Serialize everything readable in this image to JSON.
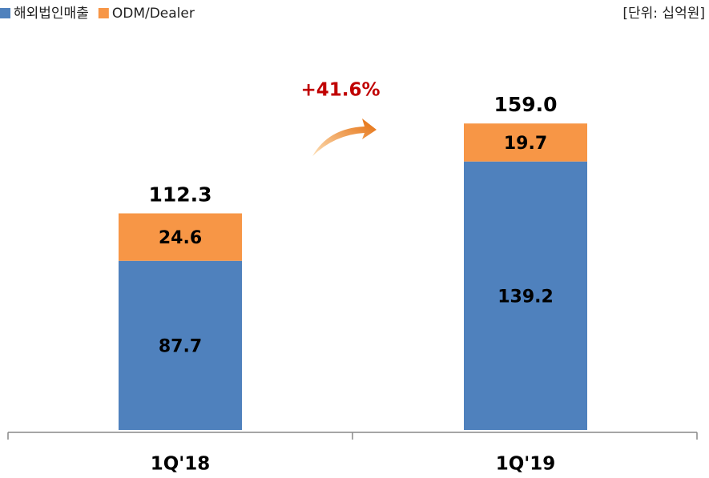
{
  "chart_data": {
    "type": "stacked_bar",
    "unit_label": "[단위: 십억원]",
    "annotation": "+41.6%",
    "categories": [
      "1Q'18",
      "1Q'19"
    ],
    "series": [
      {
        "name": "해외법인매출",
        "color": "#4f81bd",
        "values": [
          87.7,
          139.2
        ]
      },
      {
        "name": "ODM/Dealer",
        "color": "#f79646",
        "values": [
          24.6,
          19.7
        ]
      }
    ],
    "totals": [
      112.3,
      159.0
    ],
    "total_labels": [
      "112.3",
      "159.0"
    ],
    "legend": "top-left"
  }
}
